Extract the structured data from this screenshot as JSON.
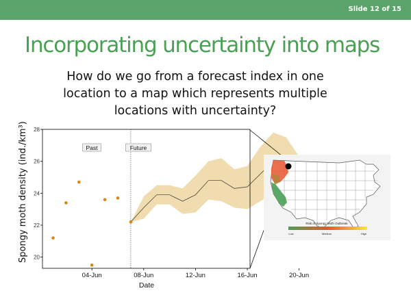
{
  "slide": {
    "number_label": "Slide 12 of 15"
  },
  "title": "Incorporating uncertainty into maps",
  "subtitle": "How do we go from a forecast index in one location to a map which represents multiple locations with uncertainty?",
  "colors": {
    "bar": "#5aa36a",
    "title": "#4aa054",
    "points": "#d48a12",
    "band": "#f0dcae",
    "map_low": "#4aa054",
    "map_mid": "#e8552f",
    "map_high": "#f5e83a"
  },
  "chart_data": {
    "type": "line",
    "xlabel": "Date",
    "ylabel": "Spongy moth density (ind./km³)",
    "ylim": [
      19.3,
      28
    ],
    "yticks": [
      "20",
      "22",
      "24",
      "26",
      "28"
    ],
    "xticks": [
      "04-Jun",
      "08-Jun",
      "12-Jun",
      "16-Jun",
      "20-Jun"
    ],
    "annotations": [
      "Past",
      "Future"
    ],
    "past_points": [
      {
        "x": "01-Jun",
        "y": 21.2
      },
      {
        "x": "02-Jun",
        "y": 23.4
      },
      {
        "x": "03-Jun",
        "y": 24.7
      },
      {
        "x": "04-Jun",
        "y": 19.5
      },
      {
        "x": "05-Jun",
        "y": 23.6
      },
      {
        "x": "06-Jun",
        "y": 23.7
      },
      {
        "x": "07-Jun",
        "y": 22.2
      }
    ],
    "forecast": {
      "x": [
        "07-Jun",
        "08-Jun",
        "09-Jun",
        "10-Jun",
        "11-Jun",
        "12-Jun",
        "13-Jun",
        "14-Jun",
        "15-Jun",
        "16-Jun",
        "17-Jun",
        "18-Jun",
        "19-Jun",
        "20-Jun"
      ],
      "mean": [
        22.2,
        23.1,
        23.9,
        23.9,
        23.5,
        23.9,
        24.8,
        24.8,
        24.3,
        24.4,
        25.2,
        26.0,
        25.6,
        24.2
      ],
      "lower": [
        22.2,
        22.4,
        23.3,
        23.3,
        22.7,
        22.8,
        23.6,
        23.5,
        23.1,
        23.0,
        23.5,
        24.0,
        23.5,
        22.0
      ],
      "upper": [
        22.2,
        23.8,
        24.5,
        24.5,
        24.3,
        25.1,
        26.0,
        26.2,
        25.5,
        25.7,
        26.9,
        27.8,
        27.5,
        26.3
      ]
    },
    "forecast_start": "07-Jun",
    "grid": false
  },
  "map": {
    "legend_title": "Risk of Spongy Moth Outbreak",
    "legend_labels": [
      "Low",
      "Medium",
      "High"
    ]
  }
}
